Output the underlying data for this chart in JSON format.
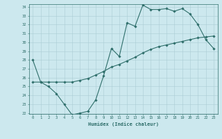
{
  "xlabel": "Humidex (Indice chaleur)",
  "ylabel": "",
  "bg_color": "#cce8ee",
  "line_color": "#2e6e6a",
  "x_min": 0,
  "x_max": 23,
  "y_min": 22,
  "y_max": 34,
  "series1_x": [
    0,
    1,
    2,
    3,
    4,
    5,
    6,
    7,
    8,
    9,
    10,
    11,
    12,
    13,
    14,
    15,
    16,
    17,
    18,
    19,
    20,
    21,
    22,
    23
  ],
  "series1_y": [
    28.0,
    25.5,
    25.0,
    24.2,
    23.0,
    21.8,
    22.0,
    22.2,
    23.5,
    26.2,
    29.3,
    28.4,
    32.2,
    31.8,
    34.2,
    33.7,
    33.7,
    33.8,
    33.5,
    33.8,
    33.2,
    32.0,
    30.3,
    29.3
  ],
  "series2_x": [
    0,
    1,
    2,
    3,
    4,
    5,
    6,
    7,
    8,
    9,
    10,
    11,
    12,
    13,
    14,
    15,
    16,
    17,
    18,
    19,
    20,
    21,
    22,
    23
  ],
  "series2_y": [
    25.5,
    25.5,
    25.5,
    25.5,
    25.5,
    25.5,
    25.7,
    25.9,
    26.3,
    26.7,
    27.2,
    27.5,
    27.9,
    28.3,
    28.8,
    29.2,
    29.5,
    29.7,
    29.9,
    30.1,
    30.3,
    30.5,
    30.6,
    30.7
  ],
  "grid_color": "#aaccd4",
  "font_color": "#2e6e6a",
  "marker_size": 1.8,
  "line_width": 0.8,
  "tick_fontsize": 4.0,
  "xlabel_fontsize": 5.0
}
